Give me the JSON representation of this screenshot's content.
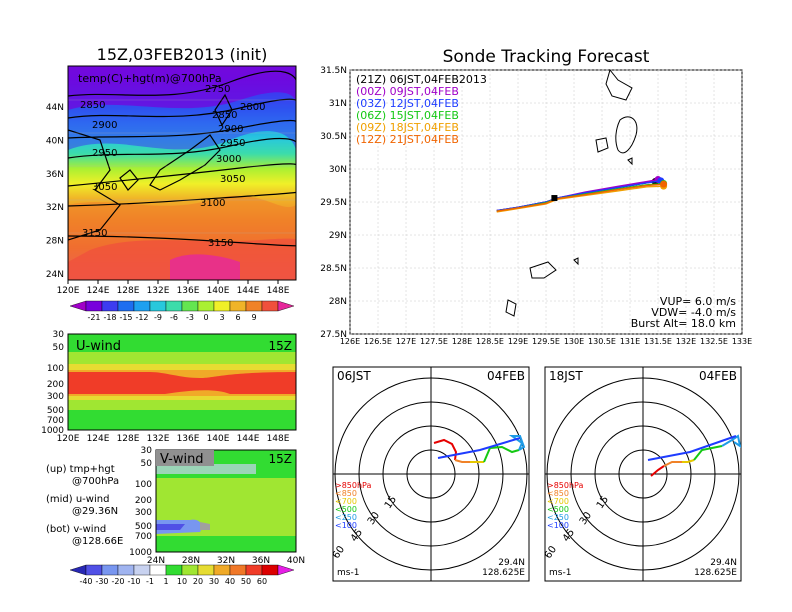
{
  "colors": {
    "temp_scale": [
      "#a000c8",
      "#7800dc",
      "#3c3cf0",
      "#1e6ef0",
      "#1ea0f0",
      "#28c8dc",
      "#3cdcaa",
      "#64e650",
      "#aaf032",
      "#f0f028",
      "#f0b428",
      "#f08228",
      "#f0503c",
      "#e6289b"
    ],
    "wind_scale": [
      "#2828b4",
      "#5050e6",
      "#7896f0",
      "#a0b4f0",
      "#c8d2f0",
      "#ffffff",
      "#32dc32",
      "#a0e632",
      "#e6dc32",
      "#f0aa28",
      "#f07828",
      "#f03c28",
      "#dc0000",
      "#e61ee6"
    ],
    "time_colors": [
      "#000000",
      "#a000c8",
      "#1e3cff",
      "#14c814",
      "#f0a000",
      "#f06400"
    ]
  },
  "chart_data": [
    {
      "type": "heatmap",
      "title": "15Z,03FEB2013 (init)",
      "annotation": "temp(C)+hgt(m)@700hPa",
      "x_ticks": [
        "120E",
        "124E",
        "128E",
        "132E",
        "136E",
        "140E",
        "144E",
        "148E"
      ],
      "y_ticks": [
        "24N",
        "28N",
        "32N",
        "36N",
        "40N",
        "44N"
      ],
      "contour_labels": [
        "2850",
        "2750",
        "2800",
        "2850",
        "2900",
        "2900",
        "2950",
        "2950",
        "3000",
        "3050",
        "3050",
        "3100",
        "3150",
        "3150"
      ],
      "colorbar_ticks": [
        "-21",
        "-18",
        "-15",
        "-12",
        "-9",
        "-6",
        "-3",
        "0",
        "3",
        "6",
        "9"
      ]
    },
    {
      "type": "heatmap",
      "title": "U-wind",
      "time_label": "15Z",
      "x_ticks": [
        "120E",
        "124E",
        "128E",
        "132E",
        "136E",
        "140E",
        "144E",
        "148E"
      ],
      "y_ticks": [
        "30",
        "50",
        "100",
        "200",
        "300",
        "500",
        "700",
        "1000"
      ]
    },
    {
      "type": "heatmap",
      "title": "V-wind",
      "time_label": "15Z",
      "x_ticks": [
        "24N",
        "28N",
        "32N",
        "36N",
        "40N"
      ],
      "y_ticks": [
        "30",
        "50",
        "100",
        "200",
        "300",
        "500",
        "700",
        "1000"
      ],
      "colorbar_ticks": [
        "-40",
        "-30",
        "-20",
        "-10",
        "-1",
        "1",
        "10",
        "20",
        "30",
        "40",
        "50",
        "60"
      ]
    },
    {
      "type": "line",
      "title": "Sonde Tracking Forecast",
      "x_ticks": [
        "126E",
        "126.5E",
        "127E",
        "127.5E",
        "128E",
        "128.5E",
        "129E",
        "129.5E",
        "130E",
        "130.5E",
        "131E",
        "131.5E",
        "132E",
        "132.5E",
        "133E"
      ],
      "y_ticks": [
        "27.5N",
        "28N",
        "28.5N",
        "29N",
        "29.5N",
        "30N",
        "30.5N",
        "31N",
        "31.5N"
      ],
      "xlim": [
        126,
        133
      ],
      "ylim": [
        27.5,
        31.5
      ],
      "legend": [
        "(21Z)  06JST,04FEB2013",
        "(00Z)  09JST,04FEB",
        "(03Z)  12JST,04FEB",
        "(06Z)  15JST,04FEB",
        "(09Z)  18JST,04FEB",
        "(12Z)  21JST,04FEB"
      ],
      "params": [
        "VUP=  6.0  m/s",
        "VDW=  -4.0  m/s",
        "Burst Alt=  18.0  km"
      ],
      "series": [
        {
          "name": "(21Z)  06JST,04FEB2013",
          "x": [
            128.62,
            129.0,
            129.5,
            129.7,
            130.2,
            130.8,
            131.3,
            131.45
          ],
          "y": [
            29.37,
            29.42,
            29.5,
            29.56,
            29.64,
            29.72,
            29.79,
            29.81
          ]
        },
        {
          "name": "(00Z)  09JST,04FEB",
          "x": [
            128.62,
            129.0,
            129.5,
            129.7,
            130.2,
            130.8,
            131.3,
            131.5
          ],
          "y": [
            29.37,
            29.42,
            29.5,
            29.56,
            29.65,
            29.74,
            29.81,
            29.84
          ]
        },
        {
          "name": "(03Z)  12JST,04FEB",
          "x": [
            128.62,
            129.0,
            129.5,
            129.7,
            130.2,
            130.8,
            131.3,
            131.55
          ],
          "y": [
            29.37,
            29.42,
            29.5,
            29.56,
            29.64,
            29.72,
            29.79,
            29.82
          ]
        },
        {
          "name": "(06Z)  15JST,04FEB",
          "x": [
            128.62,
            129.0,
            129.5,
            129.7,
            130.2,
            130.8,
            131.3,
            131.6
          ],
          "y": [
            29.36,
            29.41,
            29.49,
            29.55,
            29.62,
            29.7,
            29.76,
            29.78
          ]
        },
        {
          "name": "(09Z)  18JST,04FEB",
          "x": [
            128.62,
            129.0,
            129.5,
            129.7,
            130.2,
            130.8,
            131.3,
            131.6
          ],
          "y": [
            29.35,
            29.4,
            29.47,
            29.54,
            29.6,
            29.67,
            29.73,
            29.74
          ]
        },
        {
          "name": "(12Z)  21JST,04FEB",
          "x": [
            128.62,
            129.0,
            129.5,
            129.7,
            130.2,
            130.8,
            131.3,
            131.6
          ],
          "y": [
            29.36,
            29.41,
            29.48,
            29.55,
            29.61,
            29.69,
            29.75,
            29.77
          ]
        }
      ]
    },
    {
      "type": "scatter",
      "time_left": "06JST",
      "date_right": "04FEB",
      "ring_labels": [
        "15",
        "30",
        "45",
        "60"
      ],
      "legend": [
        ">850hPa",
        "<850",
        "<700",
        "<500",
        "<250",
        "<100"
      ],
      "unit": "ms-1",
      "location": [
        "29.4N",
        "128.625E"
      ]
    },
    {
      "type": "scatter",
      "time_left": "18JST",
      "date_right": "04FEB",
      "ring_labels": [
        "15",
        "30",
        "45",
        "60"
      ],
      "legend": [
        ">850hPa",
        "<850",
        "<700",
        "<500",
        "<250",
        "<100"
      ],
      "unit": "ms-1",
      "location": [
        "29.4N",
        "128.625E"
      ]
    }
  ],
  "side_labels": {
    "up": [
      "(up)  tmp+hgt",
      "@700hPa"
    ],
    "mid": [
      "(mid)  u-wind",
      "@29.36N"
    ],
    "bot": [
      "(bot)  v-wind",
      "@128.66E"
    ]
  }
}
